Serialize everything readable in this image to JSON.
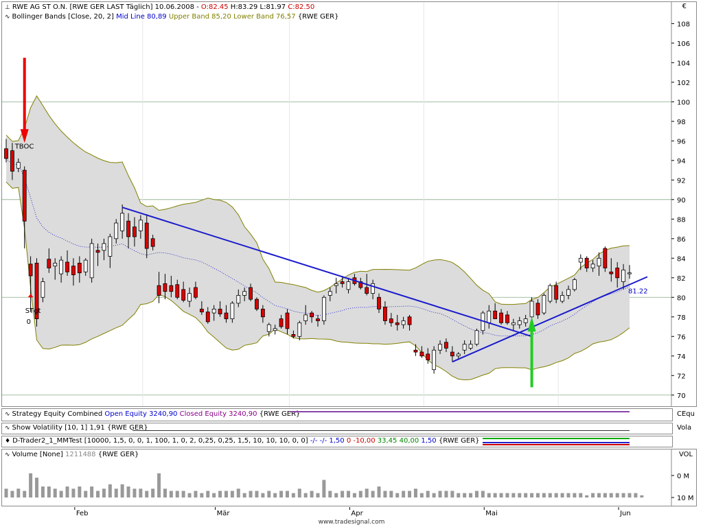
{
  "header": {
    "symbol_line": "RWE AG ST O.N. [RWE GER LAST Täglich] 10.06.2008",
    "ohlc": {
      "open": "O:82.45",
      "high": "H:83.29",
      "low": "L:81.97",
      "close": "C:82.50"
    },
    "bollinger_prefix": "Bollinger Bands [Close, 20, 2]",
    "mid_line": "Mid Line 80,89",
    "upper_band": "Upper Band 85,20",
    "lower_band": "Lower Band 76,57",
    "bollinger_suffix": "{RWE GER}",
    "currency": "€"
  },
  "strategy": {
    "prefix": "Strategy Equity Combined",
    "open_equity": "Open Equity 3240,90",
    "closed_equity": "Closed Equity 3240,90",
    "suffix": "{RWE GER}",
    "axis_label": "CEqu"
  },
  "volatility": {
    "label": "Show Volatility [10, 1] 1,91 {RWE GER}",
    "axis_label": "Vola"
  },
  "dtrader": {
    "prefix": "D-Trader2_1_MMTest [10000, 1,5, 0, 0, 1, 100, 1, 0, 2, 0,25, 0,25, 1,5, 10, 10, 10, 0, 0]",
    "v1": "-/- -/- 1,50",
    "v2": "0 -10,00",
    "v3": "33,45 40,00",
    "v4": "1,50",
    "suffix": "{RWE GER}"
  },
  "volume": {
    "prefix": "Volume [None]",
    "value": "1211488",
    "suffix": "{RWE GER}",
    "axis_label": "VOL",
    "ticks": [
      "10 M",
      "0 M"
    ]
  },
  "annotations": {
    "tboc": "TBOC",
    "stgt": "STgt",
    "stgt_value": "0",
    "last_value": "81.22"
  },
  "footer": "www.tradesignal.com",
  "colors": {
    "up": "#ffffff",
    "down": "#dd0000",
    "band_fill": "#dcdcdc",
    "band_line": "#808000",
    "mid_line": "#0000cc",
    "trendline": "#1a1acc",
    "sell_arrow": "#ee0000",
    "buy_arrow": "#22cc22",
    "volume": "#999999"
  },
  "chart_data": {
    "type": "candlestick",
    "title": "RWE AG ST O.N. [RWE GER LAST Täglich]",
    "x_labels": [
      "Feb",
      "Mär",
      "Apr",
      "Mai",
      "Jun"
    ],
    "y_ticks": [
      70,
      72,
      74,
      76,
      78,
      80,
      82,
      84,
      86,
      88,
      90,
      92,
      94,
      96,
      98,
      100,
      102,
      104,
      106,
      108
    ],
    "ylim": [
      69,
      109.5
    ],
    "horizontal_gridlines": [
      70,
      80,
      90,
      100
    ],
    "candles": [
      {
        "o": 95.2,
        "h": 96.2,
        "l": 93.8,
        "c": 94.2
      },
      {
        "o": 95.0,
        "h": 95.8,
        "l": 92.0,
        "c": 92.9
      },
      {
        "o": 93.2,
        "h": 94.2,
        "l": 92.8,
        "c": 93.8
      },
      {
        "o": 93.0,
        "h": 93.4,
        "l": 85.0,
        "c": 87.8
      },
      {
        "o": 83.4,
        "h": 84.2,
        "l": 78.5,
        "c": 82.2
      },
      {
        "o": 83.5,
        "h": 84.0,
        "l": 77.0,
        "c": 77.8
      },
      {
        "o": 80.0,
        "h": 82.0,
        "l": 79.5,
        "c": 81.6
      },
      {
        "o": 83.9,
        "h": 85.0,
        "l": 82.5,
        "c": 83.0
      },
      {
        "o": 83.2,
        "h": 84.0,
        "l": 81.8,
        "c": 83.5
      },
      {
        "o": 82.4,
        "h": 84.2,
        "l": 81.5,
        "c": 83.8
      },
      {
        "o": 83.6,
        "h": 84.8,
        "l": 82.2,
        "c": 82.6
      },
      {
        "o": 83.2,
        "h": 84.0,
        "l": 81.2,
        "c": 82.3
      },
      {
        "o": 83.5,
        "h": 84.2,
        "l": 81.5,
        "c": 82.5
      },
      {
        "o": 82.6,
        "h": 84.0,
        "l": 82.2,
        "c": 83.8
      },
      {
        "o": 82.0,
        "h": 86.0,
        "l": 81.5,
        "c": 85.5
      },
      {
        "o": 84.8,
        "h": 85.5,
        "l": 83.2,
        "c": 84.6
      },
      {
        "o": 84.8,
        "h": 86.0,
        "l": 83.8,
        "c": 85.5
      },
      {
        "o": 84.2,
        "h": 86.5,
        "l": 83.0,
        "c": 86.2
      },
      {
        "o": 86.0,
        "h": 88.0,
        "l": 85.5,
        "c": 87.6
      },
      {
        "o": 86.8,
        "h": 89.5,
        "l": 86.0,
        "c": 88.6
      },
      {
        "o": 87.8,
        "h": 88.6,
        "l": 85.0,
        "c": 86.2
      },
      {
        "o": 87.2,
        "h": 88.2,
        "l": 85.2,
        "c": 86.2
      },
      {
        "o": 86.8,
        "h": 88.4,
        "l": 86.0,
        "c": 87.9
      },
      {
        "o": 87.6,
        "h": 88.5,
        "l": 84.0,
        "c": 85.0
      },
      {
        "o": 86.0,
        "h": 86.4,
        "l": 84.8,
        "c": 85.2
      },
      {
        "o": 81.2,
        "h": 82.6,
        "l": 79.4,
        "c": 80.2
      },
      {
        "o": 81.4,
        "h": 82.4,
        "l": 79.8,
        "c": 80.6
      },
      {
        "o": 81.2,
        "h": 82.2,
        "l": 80.0,
        "c": 80.6
      },
      {
        "o": 81.3,
        "h": 81.8,
        "l": 79.8,
        "c": 80.0
      },
      {
        "o": 80.8,
        "h": 81.6,
        "l": 79.5,
        "c": 79.7
      },
      {
        "o": 79.6,
        "h": 81.0,
        "l": 79.0,
        "c": 80.4
      },
      {
        "o": 81.0,
        "h": 81.6,
        "l": 79.8,
        "c": 80.0
      },
      {
        "o": 78.8,
        "h": 79.6,
        "l": 78.2,
        "c": 78.5
      },
      {
        "o": 78.5,
        "h": 79.0,
        "l": 77.3,
        "c": 77.5
      },
      {
        "o": 78.4,
        "h": 79.2,
        "l": 77.6,
        "c": 78.8
      },
      {
        "o": 78.8,
        "h": 79.6,
        "l": 78.0,
        "c": 78.3
      },
      {
        "o": 78.4,
        "h": 79.2,
        "l": 77.4,
        "c": 77.8
      },
      {
        "o": 77.8,
        "h": 79.6,
        "l": 77.4,
        "c": 79.4
      },
      {
        "o": 79.4,
        "h": 80.8,
        "l": 79.0,
        "c": 80.2
      },
      {
        "o": 80.2,
        "h": 81.0,
        "l": 79.6,
        "c": 80.6
      },
      {
        "o": 81.0,
        "h": 81.4,
        "l": 79.6,
        "c": 79.8
      },
      {
        "o": 79.8,
        "h": 80.0,
        "l": 78.6,
        "c": 78.8
      },
      {
        "o": 78.8,
        "h": 79.2,
        "l": 77.4,
        "c": 78.0
      },
      {
        "o": 76.5,
        "h": 77.4,
        "l": 76.0,
        "c": 77.2
      },
      {
        "o": 76.6,
        "h": 77.2,
        "l": 76.2,
        "c": 76.8
      },
      {
        "o": 77.8,
        "h": 78.2,
        "l": 76.8,
        "c": 77.0
      },
      {
        "o": 78.4,
        "h": 78.8,
        "l": 76.2,
        "c": 76.8
      },
      {
        "o": 76.2,
        "h": 76.6,
        "l": 75.8,
        "c": 76.0
      },
      {
        "o": 76.0,
        "h": 77.6,
        "l": 75.6,
        "c": 77.4
      },
      {
        "o": 77.6,
        "h": 79.2,
        "l": 77.2,
        "c": 78.2
      },
      {
        "o": 78.4,
        "h": 78.6,
        "l": 77.4,
        "c": 78.0
      },
      {
        "o": 77.8,
        "h": 78.2,
        "l": 77.0,
        "c": 77.6
      },
      {
        "o": 77.6,
        "h": 80.2,
        "l": 77.2,
        "c": 80.0
      },
      {
        "o": 80.2,
        "h": 81.0,
        "l": 79.6,
        "c": 80.6
      },
      {
        "o": 81.2,
        "h": 82.0,
        "l": 80.4,
        "c": 81.4
      },
      {
        "o": 81.6,
        "h": 82.2,
        "l": 81.0,
        "c": 81.4
      },
      {
        "o": 80.8,
        "h": 82.0,
        "l": 80.4,
        "c": 81.6
      },
      {
        "o": 82.0,
        "h": 82.4,
        "l": 81.2,
        "c": 81.4
      },
      {
        "o": 81.6,
        "h": 82.0,
        "l": 80.8,
        "c": 81.0
      },
      {
        "o": 81.0,
        "h": 82.4,
        "l": 80.2,
        "c": 80.4
      },
      {
        "o": 80.4,
        "h": 81.8,
        "l": 79.8,
        "c": 81.4
      },
      {
        "o": 80.0,
        "h": 80.4,
        "l": 78.4,
        "c": 78.8
      },
      {
        "o": 79.0,
        "h": 79.6,
        "l": 77.2,
        "c": 77.6
      },
      {
        "o": 77.8,
        "h": 78.4,
        "l": 77.0,
        "c": 77.4
      },
      {
        "o": 77.4,
        "h": 78.2,
        "l": 76.6,
        "c": 77.2
      },
      {
        "o": 77.2,
        "h": 78.0,
        "l": 76.8,
        "c": 77.6
      },
      {
        "o": 78.0,
        "h": 78.2,
        "l": 76.6,
        "c": 77.2
      },
      {
        "o": 74.6,
        "h": 75.2,
        "l": 74.0,
        "c": 74.4
      },
      {
        "o": 74.4,
        "h": 75.0,
        "l": 73.8,
        "c": 74.0
      },
      {
        "o": 74.2,
        "h": 74.8,
        "l": 73.2,
        "c": 73.6
      },
      {
        "o": 72.6,
        "h": 75.0,
        "l": 72.2,
        "c": 74.6
      },
      {
        "o": 74.6,
        "h": 75.6,
        "l": 74.2,
        "c": 75.2
      },
      {
        "o": 75.4,
        "h": 75.8,
        "l": 74.4,
        "c": 74.8
      },
      {
        "o": 74.4,
        "h": 75.0,
        "l": 73.4,
        "c": 74.0
      },
      {
        "o": 74.0,
        "h": 74.4,
        "l": 73.6,
        "c": 74.2
      },
      {
        "o": 74.6,
        "h": 75.6,
        "l": 74.2,
        "c": 75.2
      },
      {
        "o": 74.8,
        "h": 75.6,
        "l": 74.6,
        "c": 75.2
      },
      {
        "o": 75.2,
        "h": 76.8,
        "l": 75.0,
        "c": 76.6
      },
      {
        "o": 76.6,
        "h": 78.6,
        "l": 76.2,
        "c": 78.4
      },
      {
        "o": 77.4,
        "h": 79.2,
        "l": 76.8,
        "c": 78.6
      },
      {
        "o": 78.6,
        "h": 79.4,
        "l": 77.8,
        "c": 77.8
      },
      {
        "o": 78.4,
        "h": 78.8,
        "l": 77.2,
        "c": 77.4
      },
      {
        "o": 78.2,
        "h": 78.6,
        "l": 77.2,
        "c": 77.4
      },
      {
        "o": 77.2,
        "h": 77.8,
        "l": 76.6,
        "c": 77.4
      },
      {
        "o": 77.2,
        "h": 78.0,
        "l": 76.8,
        "c": 77.6
      },
      {
        "o": 77.4,
        "h": 78.2,
        "l": 77.0,
        "c": 77.8
      },
      {
        "o": 78.0,
        "h": 80.0,
        "l": 77.6,
        "c": 79.6
      },
      {
        "o": 79.4,
        "h": 79.8,
        "l": 77.8,
        "c": 78.2
      },
      {
        "o": 78.4,
        "h": 80.4,
        "l": 78.2,
        "c": 80.2
      },
      {
        "o": 79.6,
        "h": 81.4,
        "l": 79.4,
        "c": 81.2
      },
      {
        "o": 81.2,
        "h": 81.6,
        "l": 79.4,
        "c": 79.8
      },
      {
        "o": 79.6,
        "h": 80.6,
        "l": 79.4,
        "c": 80.2
      },
      {
        "o": 80.2,
        "h": 81.2,
        "l": 79.8,
        "c": 80.8
      },
      {
        "o": 80.8,
        "h": 82.0,
        "l": 80.6,
        "c": 81.8
      },
      {
        "o": 83.6,
        "h": 84.4,
        "l": 82.8,
        "c": 84.0
      },
      {
        "o": 84.0,
        "h": 84.2,
        "l": 82.6,
        "c": 83.0
      },
      {
        "o": 83.0,
        "h": 83.8,
        "l": 82.6,
        "c": 83.4
      },
      {
        "o": 83.2,
        "h": 84.6,
        "l": 82.2,
        "c": 84.0
      },
      {
        "o": 85.0,
        "h": 85.2,
        "l": 82.6,
        "c": 83.0
      },
      {
        "o": 82.6,
        "h": 84.0,
        "l": 81.6,
        "c": 82.4
      },
      {
        "o": 83.0,
        "h": 83.6,
        "l": 81.0,
        "c": 82.0
      },
      {
        "o": 81.6,
        "h": 83.4,
        "l": 80.8,
        "c": 82.8
      },
      {
        "o": 82.4,
        "h": 83.3,
        "l": 81.9,
        "c": 82.5
      }
    ],
    "volume_m": [
      4,
      3,
      4,
      3,
      11,
      9,
      5,
      5,
      4,
      3,
      5,
      4,
      5,
      3,
      5,
      3,
      4,
      6,
      4,
      6,
      5,
      4,
      4,
      3,
      4,
      11,
      4,
      3,
      3,
      3,
      2,
      3,
      2,
      3,
      2,
      3,
      3,
      3,
      4,
      2,
      3,
      3,
      2,
      3,
      2,
      3,
      3,
      2,
      4,
      2,
      3,
      2,
      8,
      3,
      2,
      3,
      3,
      2,
      3,
      4,
      3,
      5,
      3,
      3,
      2,
      3,
      3,
      4,
      2,
      3,
      2,
      3,
      3,
      3,
      2,
      2,
      2,
      3,
      3,
      2,
      2,
      2,
      2,
      2,
      2,
      2,
      2,
      2,
      2,
      2,
      2,
      2,
      2,
      2,
      2,
      1,
      2,
      2,
      2,
      2,
      2,
      2,
      2,
      2,
      1
    ],
    "volume_ylim": [
      0,
      16
    ],
    "volume_ticks": [
      0,
      10
    ]
  }
}
